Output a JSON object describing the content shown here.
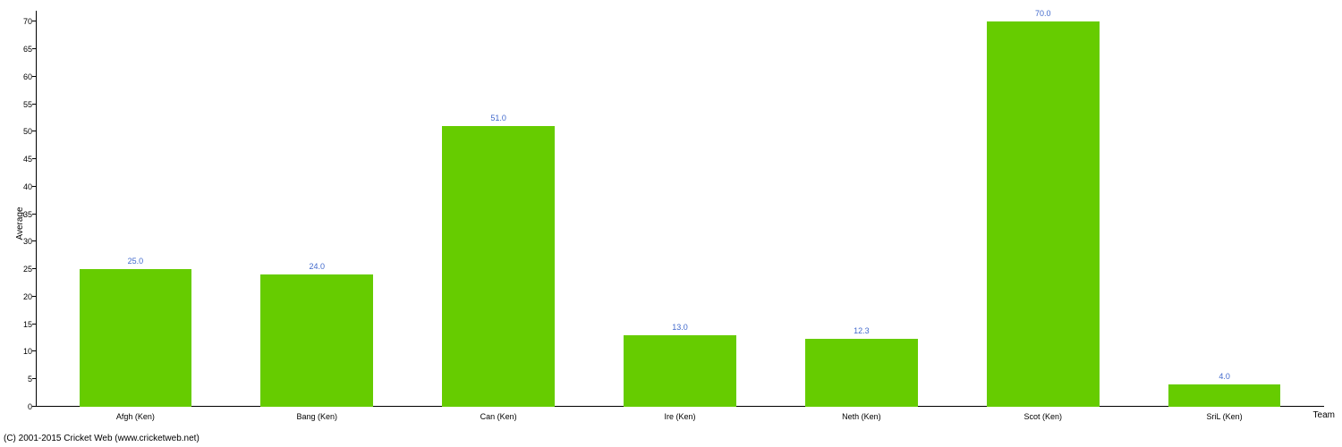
{
  "chart": {
    "type": "bar",
    "ylabel": "Average",
    "xlabel": "Team",
    "ylim": [
      0,
      72
    ],
    "ytick_step": 5,
    "yticks": [
      0,
      5,
      10,
      15,
      20,
      25,
      30,
      35,
      40,
      45,
      50,
      55,
      60,
      65,
      70
    ],
    "bar_color": "#66cc00",
    "value_label_color": "#4169cc",
    "axis_color": "#000000",
    "background_color": "#ffffff",
    "label_fontsize": 10,
    "tick_fontsize": 9,
    "value_fontsize": 9,
    "bar_width": 0.62,
    "categories": [
      "Afgh (Ken)",
      "Bang (Ken)",
      "Can (Ken)",
      "Ire (Ken)",
      "Neth (Ken)",
      "Scot (Ken)",
      "SriL (Ken)"
    ],
    "values": [
      25.0,
      24.0,
      51.0,
      13.0,
      12.3,
      70.0,
      4.0
    ],
    "value_labels": [
      "25.0",
      "24.0",
      "51.0",
      "13.0",
      "12.3",
      "70.0",
      "4.0"
    ]
  },
  "copyright": "(C) 2001-2015 Cricket Web (www.cricketweb.net)"
}
